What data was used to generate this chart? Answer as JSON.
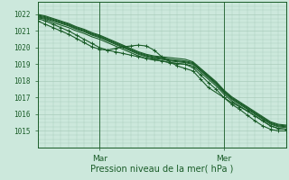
{
  "title": "",
  "xlabel": "Pression niveau de la mer( hPa )",
  "ylabel": "",
  "bg_color": "#cce8dc",
  "grid_color": "#aaccbb",
  "line_color": "#1a5c28",
  "ylim": [
    1014.2,
    1022.5
  ],
  "xlim": [
    0,
    96
  ],
  "xtick_positions": [
    24,
    72
  ],
  "xtick_labels": [
    "Mar",
    "Mer"
  ],
  "ytick_positions": [
    1015,
    1016,
    1017,
    1018,
    1019,
    1020,
    1021,
    1022
  ],
  "ytick_labels": [
    "1015",
    "1016",
    "1017",
    "1018",
    "1019",
    "1020",
    "1021",
    "1022"
  ],
  "series": [
    {
      "x": [
        0,
        3,
        6,
        9,
        12,
        15,
        18,
        21,
        24,
        27,
        30,
        33,
        36,
        39,
        42,
        45,
        48,
        51,
        54,
        57,
        60,
        63,
        66,
        69,
        72,
        75,
        78,
        81,
        84,
        87,
        90,
        93,
        96
      ],
      "y": [
        1021.8,
        1021.7,
        1021.5,
        1021.35,
        1021.2,
        1021.0,
        1020.85,
        1020.65,
        1020.5,
        1020.3,
        1020.1,
        1019.9,
        1019.7,
        1019.5,
        1019.35,
        1019.25,
        1019.2,
        1019.1,
        1019.05,
        1019.0,
        1018.9,
        1018.5,
        1018.1,
        1017.7,
        1017.2,
        1016.8,
        1016.5,
        1016.2,
        1015.9,
        1015.6,
        1015.3,
        1015.15,
        1015.1
      ],
      "marker": null,
      "lw": 0.8
    },
    {
      "x": [
        0,
        3,
        6,
        9,
        12,
        15,
        18,
        21,
        24,
        27,
        30,
        33,
        36,
        39,
        42,
        45,
        48,
        51,
        54,
        57,
        60,
        63,
        66,
        69,
        72,
        75,
        78,
        81,
        84,
        87,
        90,
        93,
        96
      ],
      "y": [
        1021.85,
        1021.75,
        1021.6,
        1021.45,
        1021.3,
        1021.1,
        1020.95,
        1020.75,
        1020.6,
        1020.4,
        1020.2,
        1020.0,
        1019.8,
        1019.6,
        1019.45,
        1019.35,
        1019.3,
        1019.2,
        1019.15,
        1019.1,
        1019.0,
        1018.6,
        1018.2,
        1017.8,
        1017.3,
        1016.9,
        1016.6,
        1016.3,
        1016.0,
        1015.7,
        1015.4,
        1015.25,
        1015.2
      ],
      "marker": null,
      "lw": 0.8
    },
    {
      "x": [
        0,
        3,
        6,
        9,
        12,
        15,
        18,
        21,
        24,
        27,
        30,
        33,
        36,
        39,
        42,
        45,
        48,
        51,
        54,
        57,
        60,
        63,
        66,
        69,
        72,
        75,
        78,
        81,
        84,
        87,
        90,
        93,
        96
      ],
      "y": [
        1021.9,
        1021.8,
        1021.65,
        1021.5,
        1021.35,
        1021.15,
        1021.0,
        1020.8,
        1020.65,
        1020.45,
        1020.25,
        1020.05,
        1019.85,
        1019.65,
        1019.5,
        1019.4,
        1019.35,
        1019.25,
        1019.2,
        1019.15,
        1019.05,
        1018.65,
        1018.25,
        1017.85,
        1017.35,
        1016.95,
        1016.65,
        1016.35,
        1016.05,
        1015.75,
        1015.45,
        1015.3,
        1015.25
      ],
      "marker": null,
      "lw": 0.8
    },
    {
      "x": [
        0,
        3,
        6,
        9,
        12,
        15,
        18,
        21,
        24,
        27,
        30,
        33,
        36,
        39,
        42,
        45,
        48,
        51,
        54,
        57,
        60,
        63,
        66,
        69,
        72,
        75,
        78,
        81,
        84,
        87,
        90,
        93,
        96
      ],
      "y": [
        1021.95,
        1021.85,
        1021.7,
        1021.55,
        1021.4,
        1021.2,
        1021.05,
        1020.85,
        1020.7,
        1020.5,
        1020.3,
        1020.1,
        1019.9,
        1019.7,
        1019.55,
        1019.45,
        1019.4,
        1019.3,
        1019.25,
        1019.2,
        1019.1,
        1018.7,
        1018.3,
        1017.9,
        1017.4,
        1017.0,
        1016.7,
        1016.4,
        1016.1,
        1015.8,
        1015.5,
        1015.35,
        1015.3
      ],
      "marker": null,
      "lw": 0.8
    },
    {
      "x": [
        0,
        3,
        6,
        9,
        12,
        15,
        18,
        21,
        24,
        27,
        30,
        33,
        36,
        39,
        42,
        45,
        48,
        54,
        57,
        60,
        63,
        66,
        69,
        72,
        75,
        78,
        81,
        84,
        87,
        90,
        93,
        96
      ],
      "y": [
        1022.0,
        1021.9,
        1021.75,
        1021.6,
        1021.45,
        1021.25,
        1021.1,
        1020.9,
        1020.75,
        1020.55,
        1020.35,
        1020.15,
        1019.95,
        1019.75,
        1019.6,
        1019.5,
        1019.45,
        1019.35,
        1019.3,
        1019.15,
        1018.75,
        1018.35,
        1017.95,
        1017.45,
        1017.05,
        1016.75,
        1016.45,
        1016.15,
        1015.85,
        1015.55,
        1015.4,
        1015.35
      ],
      "marker": null,
      "lw": 0.8
    },
    {
      "x": [
        0,
        3,
        6,
        9,
        12,
        15,
        18,
        21,
        24,
        27,
        30,
        33,
        36,
        39,
        42,
        45,
        48,
        51,
        54,
        57,
        60,
        63,
        66,
        69,
        72,
        75,
        78,
        81,
        84,
        87,
        90,
        93,
        96
      ],
      "y": [
        1021.75,
        1021.6,
        1021.4,
        1021.2,
        1021.0,
        1020.75,
        1020.5,
        1020.25,
        1020.0,
        1019.85,
        1019.75,
        1019.65,
        1019.55,
        1019.45,
        1019.35,
        1019.3,
        1019.2,
        1019.1,
        1019.05,
        1019.0,
        1018.8,
        1018.35,
        1017.9,
        1017.5,
        1017.0,
        1016.7,
        1016.45,
        1016.2,
        1015.9,
        1015.6,
        1015.3,
        1015.15,
        1015.1
      ],
      "marker": "+",
      "lw": 0.8
    },
    {
      "x": [
        0,
        3,
        6,
        9,
        12,
        15,
        18,
        21,
        24,
        27,
        30,
        33,
        36,
        39,
        42,
        45,
        48,
        51,
        54,
        57,
        60,
        63,
        66,
        72,
        75,
        78,
        81,
        84,
        87,
        90,
        93,
        96
      ],
      "y": [
        1021.6,
        1021.4,
        1021.2,
        1021.0,
        1020.8,
        1020.55,
        1020.3,
        1020.05,
        1019.9,
        1019.85,
        1019.95,
        1020.05,
        1020.1,
        1020.15,
        1020.1,
        1019.85,
        1019.45,
        1019.15,
        1018.9,
        1018.75,
        1018.6,
        1018.1,
        1017.6,
        1017.0,
        1016.6,
        1016.3,
        1015.95,
        1015.6,
        1015.3,
        1015.1,
        1015.0,
        1015.0
      ],
      "marker": "+",
      "lw": 0.8
    }
  ]
}
